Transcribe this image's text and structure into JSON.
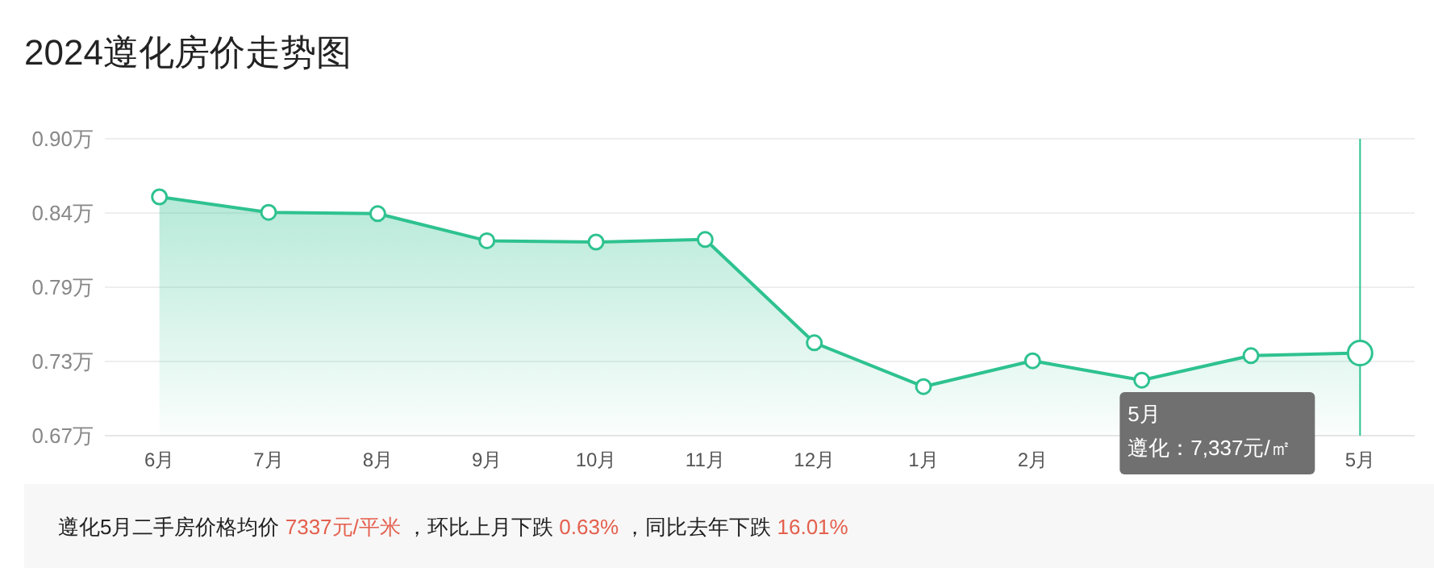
{
  "chart_data": {
    "type": "area",
    "title": "2024遵化房价走势图",
    "categories": [
      "6月",
      "7月",
      "8月",
      "9月",
      "10月",
      "11月",
      "12月",
      "1月",
      "2月",
      null,
      null,
      "5月"
    ],
    "series": [
      {
        "color": "#2ec28f",
        "values": [
          0.855,
          0.843,
          0.842,
          0.821,
          0.82,
          0.822,
          0.742,
          0.708,
          0.728,
          0.713,
          0.732,
          0.734
        ]
      }
    ],
    "ylim": [
      0.67,
      0.9
    ],
    "yticks": [
      {
        "value": 0.67,
        "label": "0.67万"
      },
      {
        "value": 0.7275,
        "label": "0.73万"
      },
      {
        "value": 0.785,
        "label": "0.79万"
      },
      {
        "value": 0.8425,
        "label": "0.84万"
      },
      {
        "value": 0.9,
        "label": "0.90万"
      }
    ],
    "grid": "y",
    "marker": "circle",
    "ref_lines": [
      {
        "axis": "x",
        "value": "5月",
        "color": "#2ec28f"
      }
    ],
    "annotations": [
      "5月",
      "遵化：7,337元/㎡",
      "遵化5月二手房价格均价 7337元/平米 ，环比上月下跌 0.63% ，同比去年下跌 16.01%"
    ]
  }
}
